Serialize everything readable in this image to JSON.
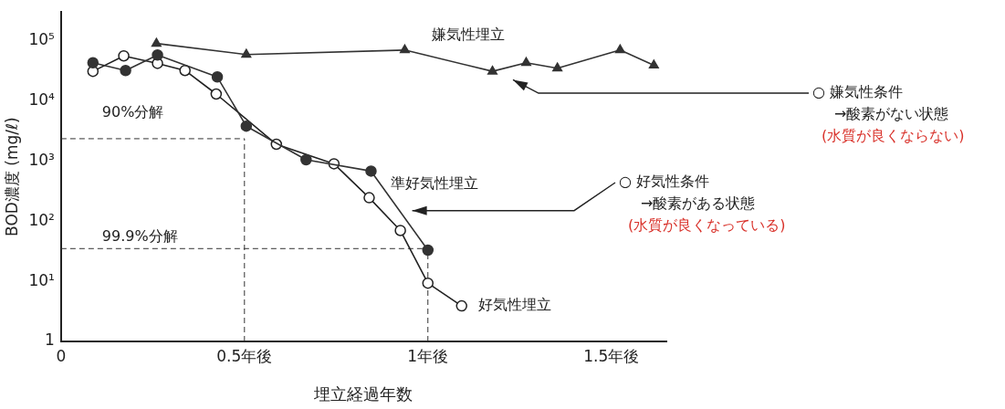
{
  "chart_data": {
    "type": "line",
    "xlabel": "埋立経過年数",
    "ylabel": "BOD濃度 (mg/ℓ)",
    "log": "y",
    "xlim": [
      0,
      1.65
    ],
    "xticks": [
      0,
      {
        "value": 0.5,
        "label": "0.5年後"
      },
      {
        "value": 1,
        "label": "1年後"
      },
      {
        "value": 1.5,
        "label": "1.5年後"
      }
    ],
    "ylim": [
      1,
      300000
    ],
    "yticks": [
      1,
      {
        "value": 10,
        "label": "10¹"
      },
      {
        "value": 100,
        "label": "10²"
      },
      {
        "value": 1000,
        "label": "10³"
      },
      {
        "value": 10000,
        "label": "10⁴"
      },
      {
        "value": 100000,
        "label": "10⁵"
      }
    ],
    "grid": false,
    "legend": false,
    "line_style": "solid",
    "series": [
      {
        "name": "嫌気性埋立",
        "color": "#333333",
        "marker": "triangle",
        "x": [
          0.26,
          0.505,
          0.937,
          1.176,
          1.268,
          1.353,
          1.524,
          1.616
        ],
        "values": [
          90000,
          59000,
          70000,
          31000,
          43000,
          35000,
          70000,
          39000
        ]
      },
      {
        "name": "準好気性埋立",
        "color": "#333333",
        "marker": "circle",
        "x": [
          0.087,
          0.176,
          0.263,
          0.426,
          0.505,
          0.668,
          0.845,
          1.0
        ],
        "values": [
          43000,
          32000,
          58000,
          25000,
          3800,
          1050,
          680,
          33
        ]
      },
      {
        "name": "好気性埋立",
        "color": "#222222",
        "marker": "circle",
        "x": [
          0.087,
          0.171,
          0.263,
          0.338,
          0.423,
          0.505,
          0.587,
          0.744,
          0.84,
          0.925,
          1.0,
          1.092
        ],
        "values": [
          31000,
          56000,
          42000,
          32000,
          13000,
          null,
          1900,
          900,
          245,
          70,
          9.3,
          3.9
        ]
      }
    ],
    "ref_lines": [
      {
        "axis": "y",
        "value": 2350,
        "label": "90%分解",
        "line_style": "dashed"
      },
      {
        "axis": "y",
        "value": 35,
        "label": "99.9%分解",
        "line_style": "dashed"
      },
      {
        "axis": "x",
        "value": 0.5,
        "line_style": "dashed"
      },
      {
        "axis": "x",
        "value": 1,
        "line_style": "dashed"
      }
    ],
    "annotations": [
      "○ 嫌気性条件",
      "→酸素がない状態",
      "(水質が良くならない)",
      "○ 好気性条件",
      "→酸素がある状態",
      "(水質が良くなっている)"
    ]
  }
}
